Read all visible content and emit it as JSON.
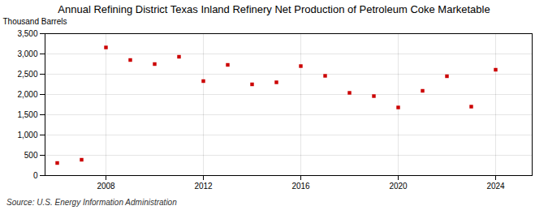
{
  "chart_data": {
    "type": "scatter",
    "title": "Annual Refining District Texas Inland Refinery Net Production of Petroleum Coke Marketable",
    "ylabel": "Thousand Barrels",
    "source": "Source: U.S. Energy Information Administration",
    "x": [
      2006,
      2007,
      2008,
      2009,
      2010,
      2011,
      2012,
      2013,
      2014,
      2015,
      2016,
      2017,
      2018,
      2019,
      2020,
      2021,
      2022,
      2023,
      2024
    ],
    "values": [
      310,
      390,
      3160,
      2850,
      2750,
      2930,
      2330,
      2730,
      2250,
      2300,
      2700,
      2460,
      2040,
      1960,
      1680,
      2090,
      2450,
      1700,
      2610
    ],
    "color": "#cc0000",
    "marker": "square",
    "xlim": [
      2005.5,
      2025.5
    ],
    "xticks": [
      2008,
      2012,
      2016,
      2020,
      2024
    ],
    "ylim": [
      0,
      3500
    ],
    "yticks": [
      0,
      500,
      {
        "value": 1000,
        "label": "1,000"
      },
      {
        "value": 1500,
        "label": "1,500"
      },
      {
        "value": 2000,
        "label": "2,000"
      },
      {
        "value": 2500,
        "label": "2,500"
      },
      {
        "value": 3000,
        "label": "3,000"
      },
      {
        "value": 3500,
        "label": "3,500"
      }
    ],
    "grid": true
  }
}
